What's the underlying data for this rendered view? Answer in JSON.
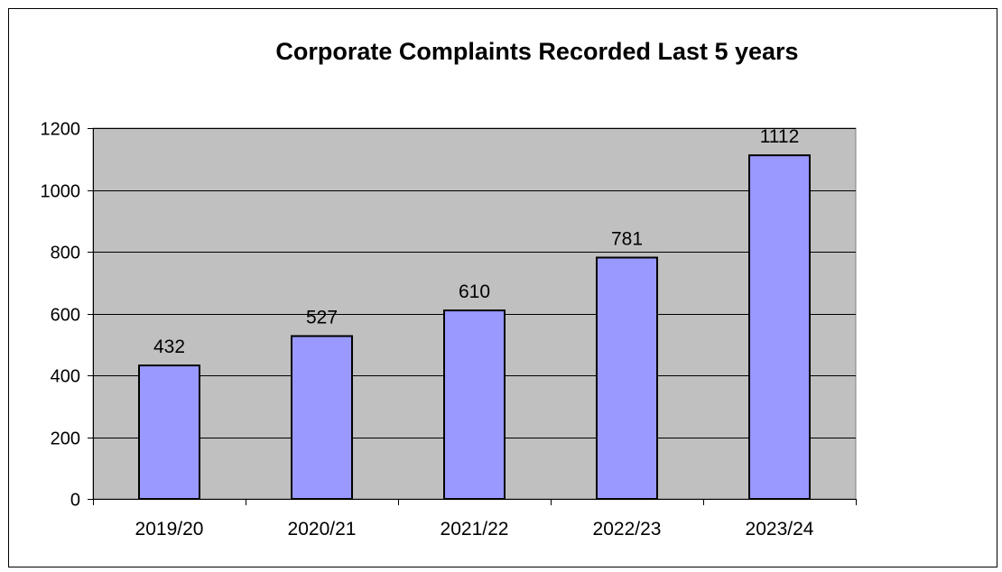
{
  "chart_data": {
    "type": "bar",
    "title": "Corporate Complaints Recorded Last 5 years",
    "categories": [
      "2019/20",
      "2020/21",
      "2021/22",
      "2022/23",
      "2023/24"
    ],
    "values": [
      432,
      527,
      610,
      781,
      1112
    ],
    "data_labels": [
      "432",
      "527",
      "610",
      "781",
      "1112"
    ],
    "y_ticks": [
      "0",
      "200",
      "400",
      "600",
      "800",
      "1000",
      "1200"
    ],
    "ylim": [
      0,
      1200
    ],
    "xlabel": "",
    "ylabel": "",
    "grid": true,
    "legend": "none",
    "colors": {
      "bar_fill": "#9999ff",
      "bar_stroke": "#000000",
      "plot_background": "#c0c0c0",
      "gridline": "#000000"
    }
  }
}
